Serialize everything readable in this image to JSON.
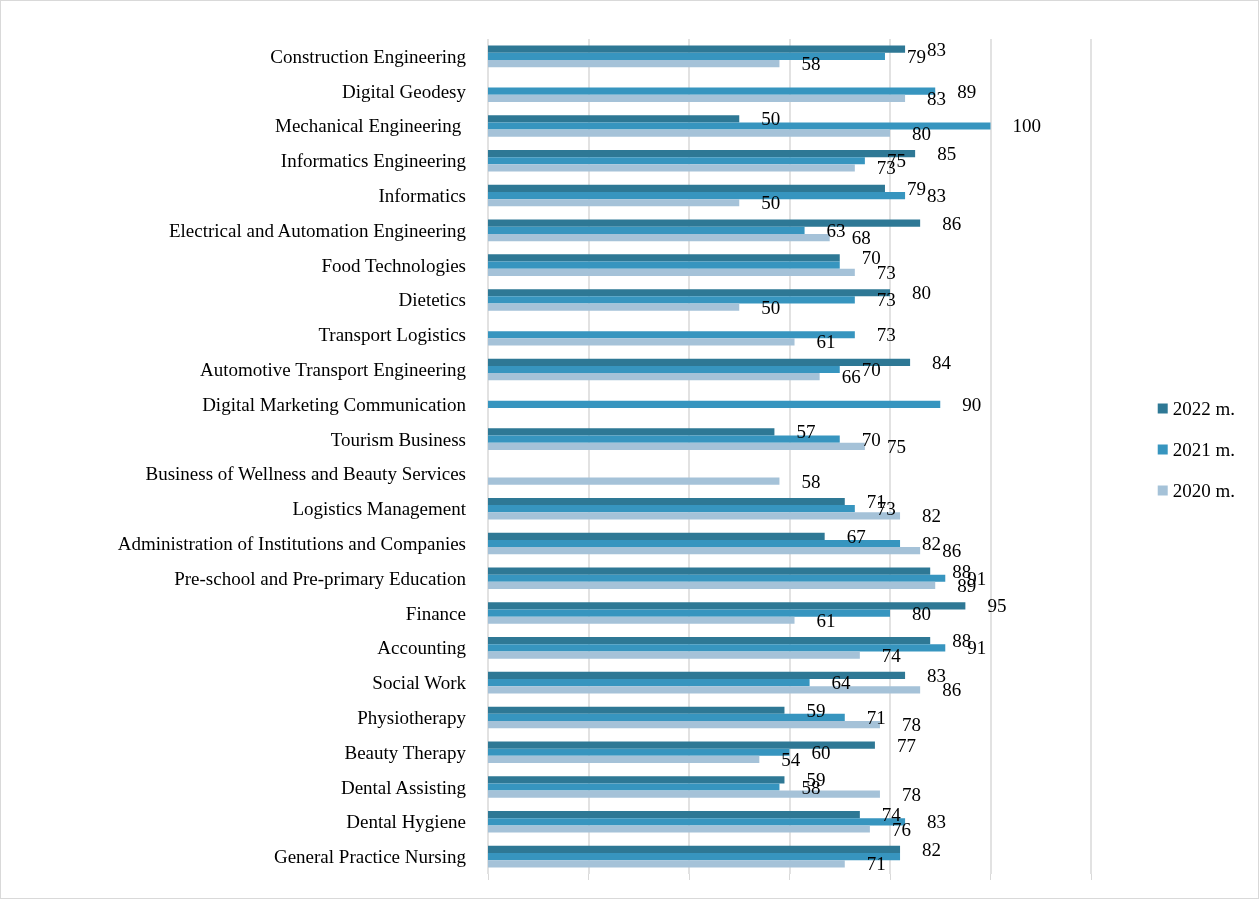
{
  "chart_data": {
    "type": "bar",
    "orientation": "horizontal",
    "categories": [
      "Construction Engineering",
      "Digital Geodesy",
      "Mechanical Engineering ",
      "Informatics Engineering",
      "Informatics",
      "Electrical and Automation Engineering",
      "Food Technologies",
      "Dietetics",
      "Transport Logistics",
      "Automotive Transport Engineering",
      "Digital Marketing Communication",
      "Tourism Business",
      "Business of Wellness and Beauty Services",
      "Logistics Management",
      "Administration of Institutions and Companies",
      "Pre-school and Pre-primary Education",
      "Finance",
      "Accounting",
      "Social Work",
      "Physiotherapy",
      "Beauty Therapy",
      "Dental Assisting",
      "Dental Hygiene",
      "General Practice Nursing"
    ],
    "series": [
      {
        "name": "2022 m.",
        "color": "#2e7895",
        "values": [
          83,
          null,
          50,
          85,
          79,
          86,
          70,
          80,
          null,
          84,
          null,
          57,
          null,
          71,
          67,
          88,
          95,
          88,
          83,
          59,
          77,
          59,
          74,
          82
        ],
        "value_labels": [
          "83",
          null,
          "50",
          "85",
          "79",
          "86",
          "70",
          "80",
          null,
          "84",
          null,
          "57",
          null,
          "71",
          "67",
          "88",
          "95",
          "88",
          "83",
          "59",
          "77",
          "59",
          "74",
          "82"
        ]
      },
      {
        "name": "2021 m.",
        "color": "#3795bf",
        "values": [
          79,
          89,
          100,
          75,
          83,
          63,
          70,
          73,
          73,
          70,
          90,
          70,
          null,
          73,
          82,
          91,
          80,
          91,
          64,
          71,
          60,
          58,
          83,
          82
        ],
        "value_labels": [
          "79",
          "89",
          "100",
          "75",
          "83",
          "63",
          null,
          "73",
          "73",
          "70",
          "90",
          "70",
          null,
          "73",
          "82",
          "91",
          "80",
          "91",
          "64",
          "71",
          "60",
          "58",
          "83",
          null
        ]
      },
      {
        "name": "2020 m.",
        "color": "#a5c2d8",
        "values": [
          58,
          83,
          80,
          73,
          50,
          68,
          73,
          50,
          61,
          66,
          null,
          75,
          58,
          82,
          86,
          89,
          61,
          74,
          86,
          78,
          54,
          78,
          76,
          71
        ],
        "value_labels": [
          "58",
          "83",
          "80",
          "73",
          "50",
          "68",
          "73",
          "50",
          "61",
          "66",
          null,
          "75",
          "58",
          "82",
          "86",
          "89",
          "61",
          "74",
          "86",
          "78",
          "54",
          "78",
          "76",
          "71"
        ]
      }
    ],
    "xlim": [
      0,
      120
    ],
    "xticks": [
      {
        "value": 0,
        "label": null
      },
      {
        "value": 20,
        "label": null
      },
      {
        "value": 40,
        "label": null
      },
      {
        "value": 60,
        "label": null
      },
      {
        "value": 80,
        "label": null
      },
      {
        "value": 100,
        "label": null
      },
      {
        "value": 120,
        "label": null
      }
    ],
    "tick_labels": "y",
    "grid": "x",
    "legend": "right"
  }
}
